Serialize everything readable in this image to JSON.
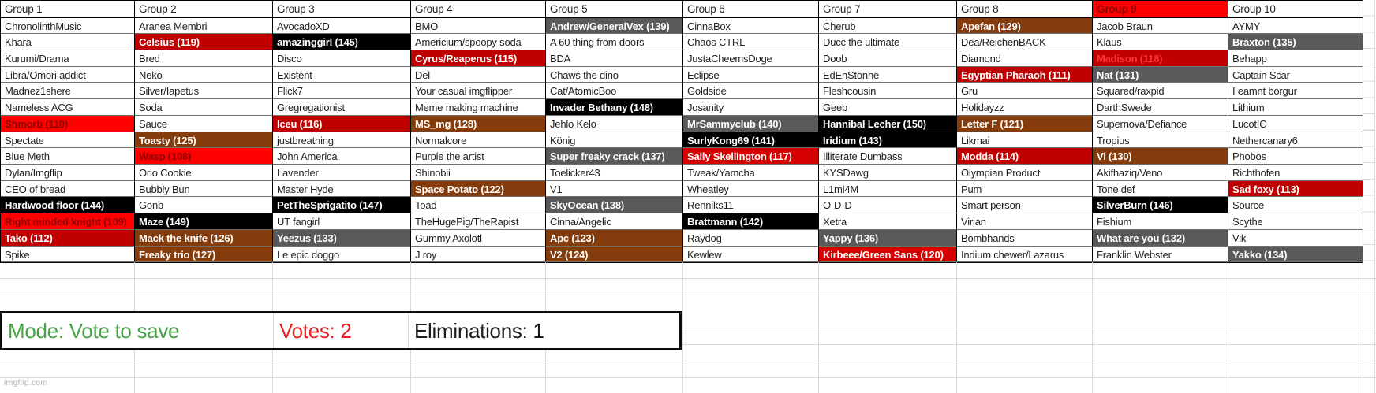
{
  "palette": {
    "red_on_red": {
      "bg": "#FE0000",
      "fg": "#8F0000"
    },
    "darkred": {
      "bg": "#C00000",
      "fg": "#FFFFFF"
    },
    "crimson": {
      "bg": "#D70000",
      "fg": "#FFFFFF"
    },
    "red_on_darkred": {
      "bg": "#C00000",
      "fg": "#FF3434"
    },
    "brown": {
      "bg": "#843C0C",
      "fg": "#FFFFFF"
    },
    "gray": {
      "bg": "#595959",
      "fg": "#FFFFFF"
    },
    "black": {
      "bg": "#000000",
      "fg": "#FFFFFF"
    }
  },
  "groups": [
    {
      "label": "Group 1",
      "members": [
        {
          "t": "ChronolinthMusic"
        },
        {
          "t": "Khara"
        },
        {
          "t": "Kurumi/Drama"
        },
        {
          "t": "Libra/Omori addict"
        },
        {
          "t": "Madnez1shere"
        },
        {
          "t": "Nameless ACG"
        },
        {
          "t": "Shmorb (110)",
          "s": "red_on_red"
        },
        {
          "t": "Spectate"
        },
        {
          "t": "Blue Meth"
        },
        {
          "t": "Dylan/Imgflip"
        },
        {
          "t": "CEO of bread"
        },
        {
          "t": "Hardwood floor (144)",
          "s": "black"
        },
        {
          "t": "Right minded knight (109)",
          "s": "red_on_red"
        },
        {
          "t": "Tako (112)",
          "s": "darkred"
        },
        {
          "t": "Spike"
        }
      ]
    },
    {
      "label": "Group 2",
      "members": [
        {
          "t": "Aranea Membri"
        },
        {
          "t": "Celsius (119)",
          "s": "darkred"
        },
        {
          "t": "Bred"
        },
        {
          "t": "Neko"
        },
        {
          "t": "Silver/Iapetus"
        },
        {
          "t": "Soda"
        },
        {
          "t": "Sauce"
        },
        {
          "t": "Toasty (125)",
          "s": "brown"
        },
        {
          "t": "Wasp (108)",
          "s": "red_on_red"
        },
        {
          "t": "Orio Cookie"
        },
        {
          "t": "Bubbly Bun"
        },
        {
          "t": "Gonb"
        },
        {
          "t": "Maze (149)",
          "s": "black"
        },
        {
          "t": "Mack the knife (126)",
          "s": "brown"
        },
        {
          "t": "Freaky trio (127)",
          "s": "brown"
        }
      ]
    },
    {
      "label": "Group 3",
      "members": [
        {
          "t": "AvocadoXD"
        },
        {
          "t": "amazinggirl (145)",
          "s": "black"
        },
        {
          "t": "Disco"
        },
        {
          "t": "Existent"
        },
        {
          "t": "Flick7"
        },
        {
          "t": "Gregregationist"
        },
        {
          "t": "Iceu (116)",
          "s": "darkred"
        },
        {
          "t": "justbreathing"
        },
        {
          "t": "John America"
        },
        {
          "t": "Lavender"
        },
        {
          "t": "Master Hyde"
        },
        {
          "t": "PetTheSprigatito (147)",
          "s": "black"
        },
        {
          "t": "UT fangirl"
        },
        {
          "t": "Yeezus (133)",
          "s": "gray"
        },
        {
          "t": "Le epic doggo"
        }
      ]
    },
    {
      "label": "Group 4",
      "members": [
        {
          "t": "BMO"
        },
        {
          "t": "Americium/spoopy soda"
        },
        {
          "t": "Cyrus/Reaperus (115)",
          "s": "darkred"
        },
        {
          "t": "Del"
        },
        {
          "t": "Your casual imgflipper"
        },
        {
          "t": "Meme making machine"
        },
        {
          "t": "MS_mg (128)",
          "s": "brown"
        },
        {
          "t": "Normalcore"
        },
        {
          "t": "Purple the artist"
        },
        {
          "t": "Shinobii"
        },
        {
          "t": "Space Potato (122)",
          "s": "brown"
        },
        {
          "t": "Toad"
        },
        {
          "t": "TheHugePig/TheRapist"
        },
        {
          "t": "Gummy Axolotl"
        },
        {
          "t": "J roy"
        }
      ]
    },
    {
      "label": "Group 5",
      "members": [
        {
          "t": "Andrew/GeneralVex (139)",
          "s": "gray"
        },
        {
          "t": "A 60 thing from doors"
        },
        {
          "t": "BDA"
        },
        {
          "t": "Chaws the dino"
        },
        {
          "t": "Cat/AtomicBoo"
        },
        {
          "t": "Invader Bethany (148)",
          "s": "black"
        },
        {
          "t": "Jehlo Kelo"
        },
        {
          "t": "König"
        },
        {
          "t": "Super freaky crack (137)",
          "s": "gray"
        },
        {
          "t": "Toelicker43"
        },
        {
          "t": "V1"
        },
        {
          "t": "SkyOcean (138)",
          "s": "gray"
        },
        {
          "t": "Cinna/Angelic"
        },
        {
          "t": "Apc (123)",
          "s": "brown"
        },
        {
          "t": "V2 (124)",
          "s": "brown"
        }
      ]
    },
    {
      "label": "Group 6",
      "members": [
        {
          "t": "CinnaBox"
        },
        {
          "t": "Chaos CTRL"
        },
        {
          "t": "JustaCheemsDoge"
        },
        {
          "t": "Eclipse"
        },
        {
          "t": "Goldside"
        },
        {
          "t": "Josanity"
        },
        {
          "t": "MrSammyclub (140)",
          "s": "gray"
        },
        {
          "t": "SurlyKong69 (141)",
          "s": "black"
        },
        {
          "t": "Sally Skellington (117)",
          "s": "crimson"
        },
        {
          "t": "Tweak/Yamcha"
        },
        {
          "t": "Wheatley"
        },
        {
          "t": "Renniks11"
        },
        {
          "t": "Brattmann (142)",
          "s": "black"
        },
        {
          "t": "Raydog"
        },
        {
          "t": "Kewlew"
        }
      ]
    },
    {
      "label": "Group 7",
      "members": [
        {
          "t": "Cherub"
        },
        {
          "t": "Ducc the ultimate"
        },
        {
          "t": "Doob"
        },
        {
          "t": "EdEnStonne"
        },
        {
          "t": "Fleshcousin"
        },
        {
          "t": "Geeb"
        },
        {
          "t": "Hannibal Lecher (150)",
          "s": "black"
        },
        {
          "t": "Iridium (143)",
          "s": "black"
        },
        {
          "t": "Illiterate Dumbass"
        },
        {
          "t": "KYSDawg"
        },
        {
          "t": "L1ml4M"
        },
        {
          "t": "O-D-D"
        },
        {
          "t": "Xetra"
        },
        {
          "t": "Yappy (136)",
          "s": "gray"
        },
        {
          "t": "Kirbeee/Green Sans (120)",
          "s": "crimson"
        }
      ]
    },
    {
      "label": "Group 8",
      "members": [
        {
          "t": "Apefan (129)",
          "s": "brown"
        },
        {
          "t": "Dea/ReichenBACK"
        },
        {
          "t": "Diamond"
        },
        {
          "t": "Egyptian Pharaoh (111)",
          "s": "darkred"
        },
        {
          "t": "Gru"
        },
        {
          "t": "Holidayzz"
        },
        {
          "t": "Letter F (121)",
          "s": "brown"
        },
        {
          "t": "Likmai"
        },
        {
          "t": "Modda (114)",
          "s": "darkred"
        },
        {
          "t": "Olympian Product"
        },
        {
          "t": "Pum"
        },
        {
          "t": "Smart person"
        },
        {
          "t": "Virian"
        },
        {
          "t": "Bombhands"
        },
        {
          "t": "Indium chewer/Lazarus"
        }
      ]
    },
    {
      "label": "Group 9",
      "header_style": "red_on_red",
      "members": [
        {
          "t": "Jacob Braun"
        },
        {
          "t": "Klaus"
        },
        {
          "t": "Madison (118)",
          "s": "red_on_darkred"
        },
        {
          "t": "Nat (131)",
          "s": "gray"
        },
        {
          "t": "Squared/raxpid"
        },
        {
          "t": "DarthSwede"
        },
        {
          "t": "Supernova/Defiance"
        },
        {
          "t": "Tropius"
        },
        {
          "t": "Vi (130)",
          "s": "brown"
        },
        {
          "t": "Akifhaziq/Veno"
        },
        {
          "t": "Tone def"
        },
        {
          "t": "SilverBurn (146)",
          "s": "black"
        },
        {
          "t": "Fishium"
        },
        {
          "t": "What are you (132)",
          "s": "gray"
        },
        {
          "t": "Franklin Webster"
        }
      ]
    },
    {
      "label": "Group 10",
      "members": [
        {
          "t": "AYMY"
        },
        {
          "t": "Braxton (135)",
          "s": "gray"
        },
        {
          "t": "Behapp"
        },
        {
          "t": "Captain Scar"
        },
        {
          "t": "I eamnt borgur"
        },
        {
          "t": "Lithium"
        },
        {
          "t": "LucotIC"
        },
        {
          "t": "Nethercanary6"
        },
        {
          "t": "Phobos"
        },
        {
          "t": "Richthofen"
        },
        {
          "t": "Sad foxy (113)",
          "s": "darkred"
        },
        {
          "t": "Source"
        },
        {
          "t": "Scythe"
        },
        {
          "t": "Vik"
        },
        {
          "t": "Yakko (134)",
          "s": "gray"
        }
      ]
    }
  ],
  "mode_bar": {
    "mode_label": "Mode: Vote to save",
    "votes_label": "Votes: 2",
    "eliminations_label": "Eliminations: 1",
    "mode_color": "#46A346",
    "votes_color": "#E82121",
    "eliminations_color": "#1B1B1B"
  },
  "watermark": "imgflip.com"
}
